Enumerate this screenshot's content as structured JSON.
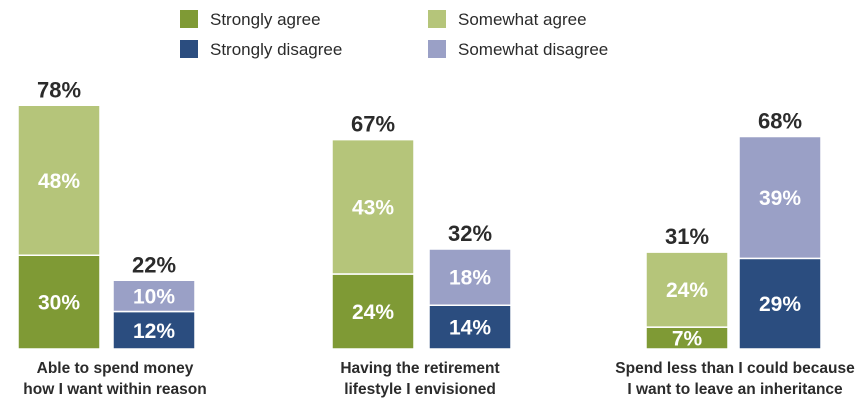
{
  "chart_data": {
    "type": "bar",
    "stacked": true,
    "title": "",
    "xlabel": "",
    "ylabel": "",
    "ylim": [
      0,
      80
    ],
    "grid": false,
    "legend_position": "top",
    "legend": [
      {
        "name": "Strongly agree",
        "color": "#7f9a35"
      },
      {
        "name": "Somewhat agree",
        "color": "#b5c57a"
      },
      {
        "name": "Strongly disagree",
        "color": "#2b4d7f"
      },
      {
        "name": "Somewhat disagree",
        "color": "#9aa0c6"
      }
    ],
    "groups": [
      {
        "category": "Able to spend money how I want within reason",
        "category_lines": [
          "Able to spend money",
          "how I want within reason"
        ],
        "bars": [
          {
            "total_label": "78%",
            "segments": [
              {
                "series": "Strongly agree",
                "value": 30,
                "label": "30%"
              },
              {
                "series": "Somewhat agree",
                "value": 48,
                "label": "48%"
              }
            ]
          },
          {
            "total_label": "22%",
            "segments": [
              {
                "series": "Strongly disagree",
                "value": 12,
                "label": "12%"
              },
              {
                "series": "Somewhat disagree",
                "value": 10,
                "label": "10%"
              }
            ]
          }
        ]
      },
      {
        "category": "Having the retirement lifestyle I envisioned",
        "category_lines": [
          "Having the retirement",
          "lifestyle I envisioned"
        ],
        "bars": [
          {
            "total_label": "67%",
            "segments": [
              {
                "series": "Strongly agree",
                "value": 24,
                "label": "24%"
              },
              {
                "series": "Somewhat agree",
                "value": 43,
                "label": "43%"
              }
            ]
          },
          {
            "total_label": "32%",
            "segments": [
              {
                "series": "Strongly disagree",
                "value": 14,
                "label": "14%"
              },
              {
                "series": "Somewhat disagree",
                "value": 18,
                "label": "18%"
              }
            ]
          }
        ]
      },
      {
        "category": "Spend less than I could because I want to leave an inheritance",
        "category_lines": [
          "Spend less than I could because",
          "I want to leave an inheritance"
        ],
        "bars": [
          {
            "total_label": "31%",
            "segments": [
              {
                "series": "Strongly agree",
                "value": 7,
                "label": "7%"
              },
              {
                "series": "Somewhat agree",
                "value": 24,
                "label": "24%"
              }
            ]
          },
          {
            "total_label": "68%",
            "segments": [
              {
                "series": "Strongly disagree",
                "value": 29,
                "label": "29%"
              },
              {
                "series": "Somewhat disagree",
                "value": 39,
                "label": "39%"
              }
            ]
          }
        ]
      }
    ]
  }
}
